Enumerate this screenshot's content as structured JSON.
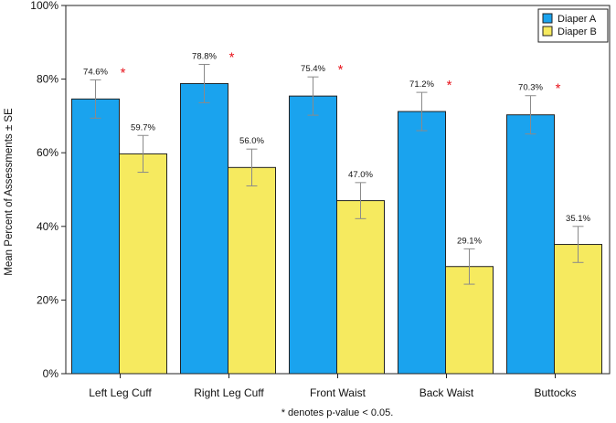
{
  "chart_data": {
    "type": "bar",
    "categories": [
      "Left Leg Cuff",
      "Right Leg Cuff",
      "Front Waist",
      "Back Waist",
      "Buttocks"
    ],
    "series": [
      {
        "name": "Diaper A",
        "color": "#1aa3ee",
        "values": [
          74.6,
          78.8,
          75.4,
          71.2,
          70.3
        ],
        "labels": [
          "74.6%",
          "78.8%",
          "75.4%",
          "71.2%",
          "70.3%"
        ],
        "se": [
          5.2,
          5.2,
          5.2,
          5.2,
          5.2
        ],
        "significant": [
          true,
          true,
          true,
          true,
          true
        ]
      },
      {
        "name": "Diaper B",
        "color": "#f6ea5f",
        "values": [
          59.7,
          56.0,
          47.0,
          29.1,
          35.1
        ],
        "labels": [
          "59.7%",
          "56.0%",
          "47.0%",
          "29.1%",
          "35.1%"
        ],
        "se": [
          5.0,
          5.0,
          4.9,
          4.8,
          4.9
        ],
        "significant": [
          false,
          false,
          false,
          false,
          false
        ]
      }
    ],
    "significance_marker": "*",
    "significance_color": "#e8141c",
    "ylabel": "Mean Percent of Assessments ± SE",
    "xlabel": "",
    "footnote": "* denotes p-value < 0.05.",
    "ylim": [
      0,
      100
    ],
    "yticks": [
      0,
      20,
      40,
      60,
      80,
      100
    ],
    "ytick_labels": [
      "0%",
      "20%",
      "40%",
      "60%",
      "80%",
      "100%"
    ],
    "legend_position": "top-right",
    "grid": false
  }
}
